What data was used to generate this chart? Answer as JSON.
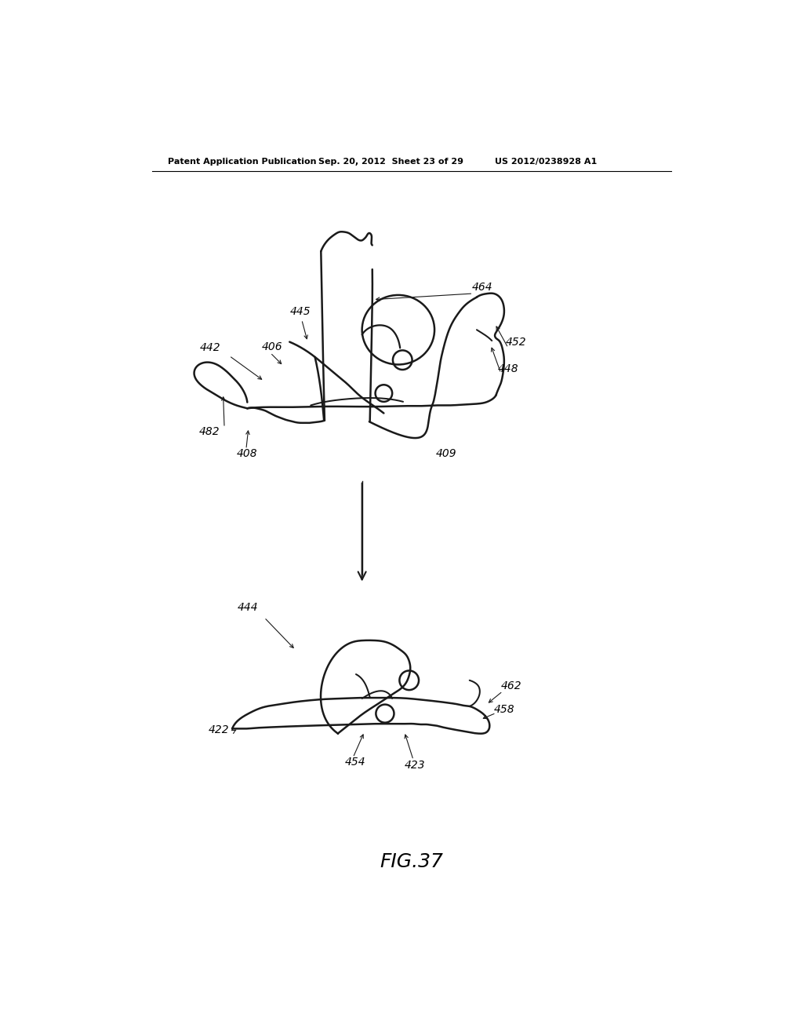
{
  "bg_color": "#ffffff",
  "header_left": "Patent Application Publication",
  "header_mid": "Sep. 20, 2012  Sheet 23 of 29",
  "header_right": "US 2012/0238928 A1",
  "figure_label": "FIG.37",
  "line_color": "#1a1a1a",
  "line_width": 1.8
}
